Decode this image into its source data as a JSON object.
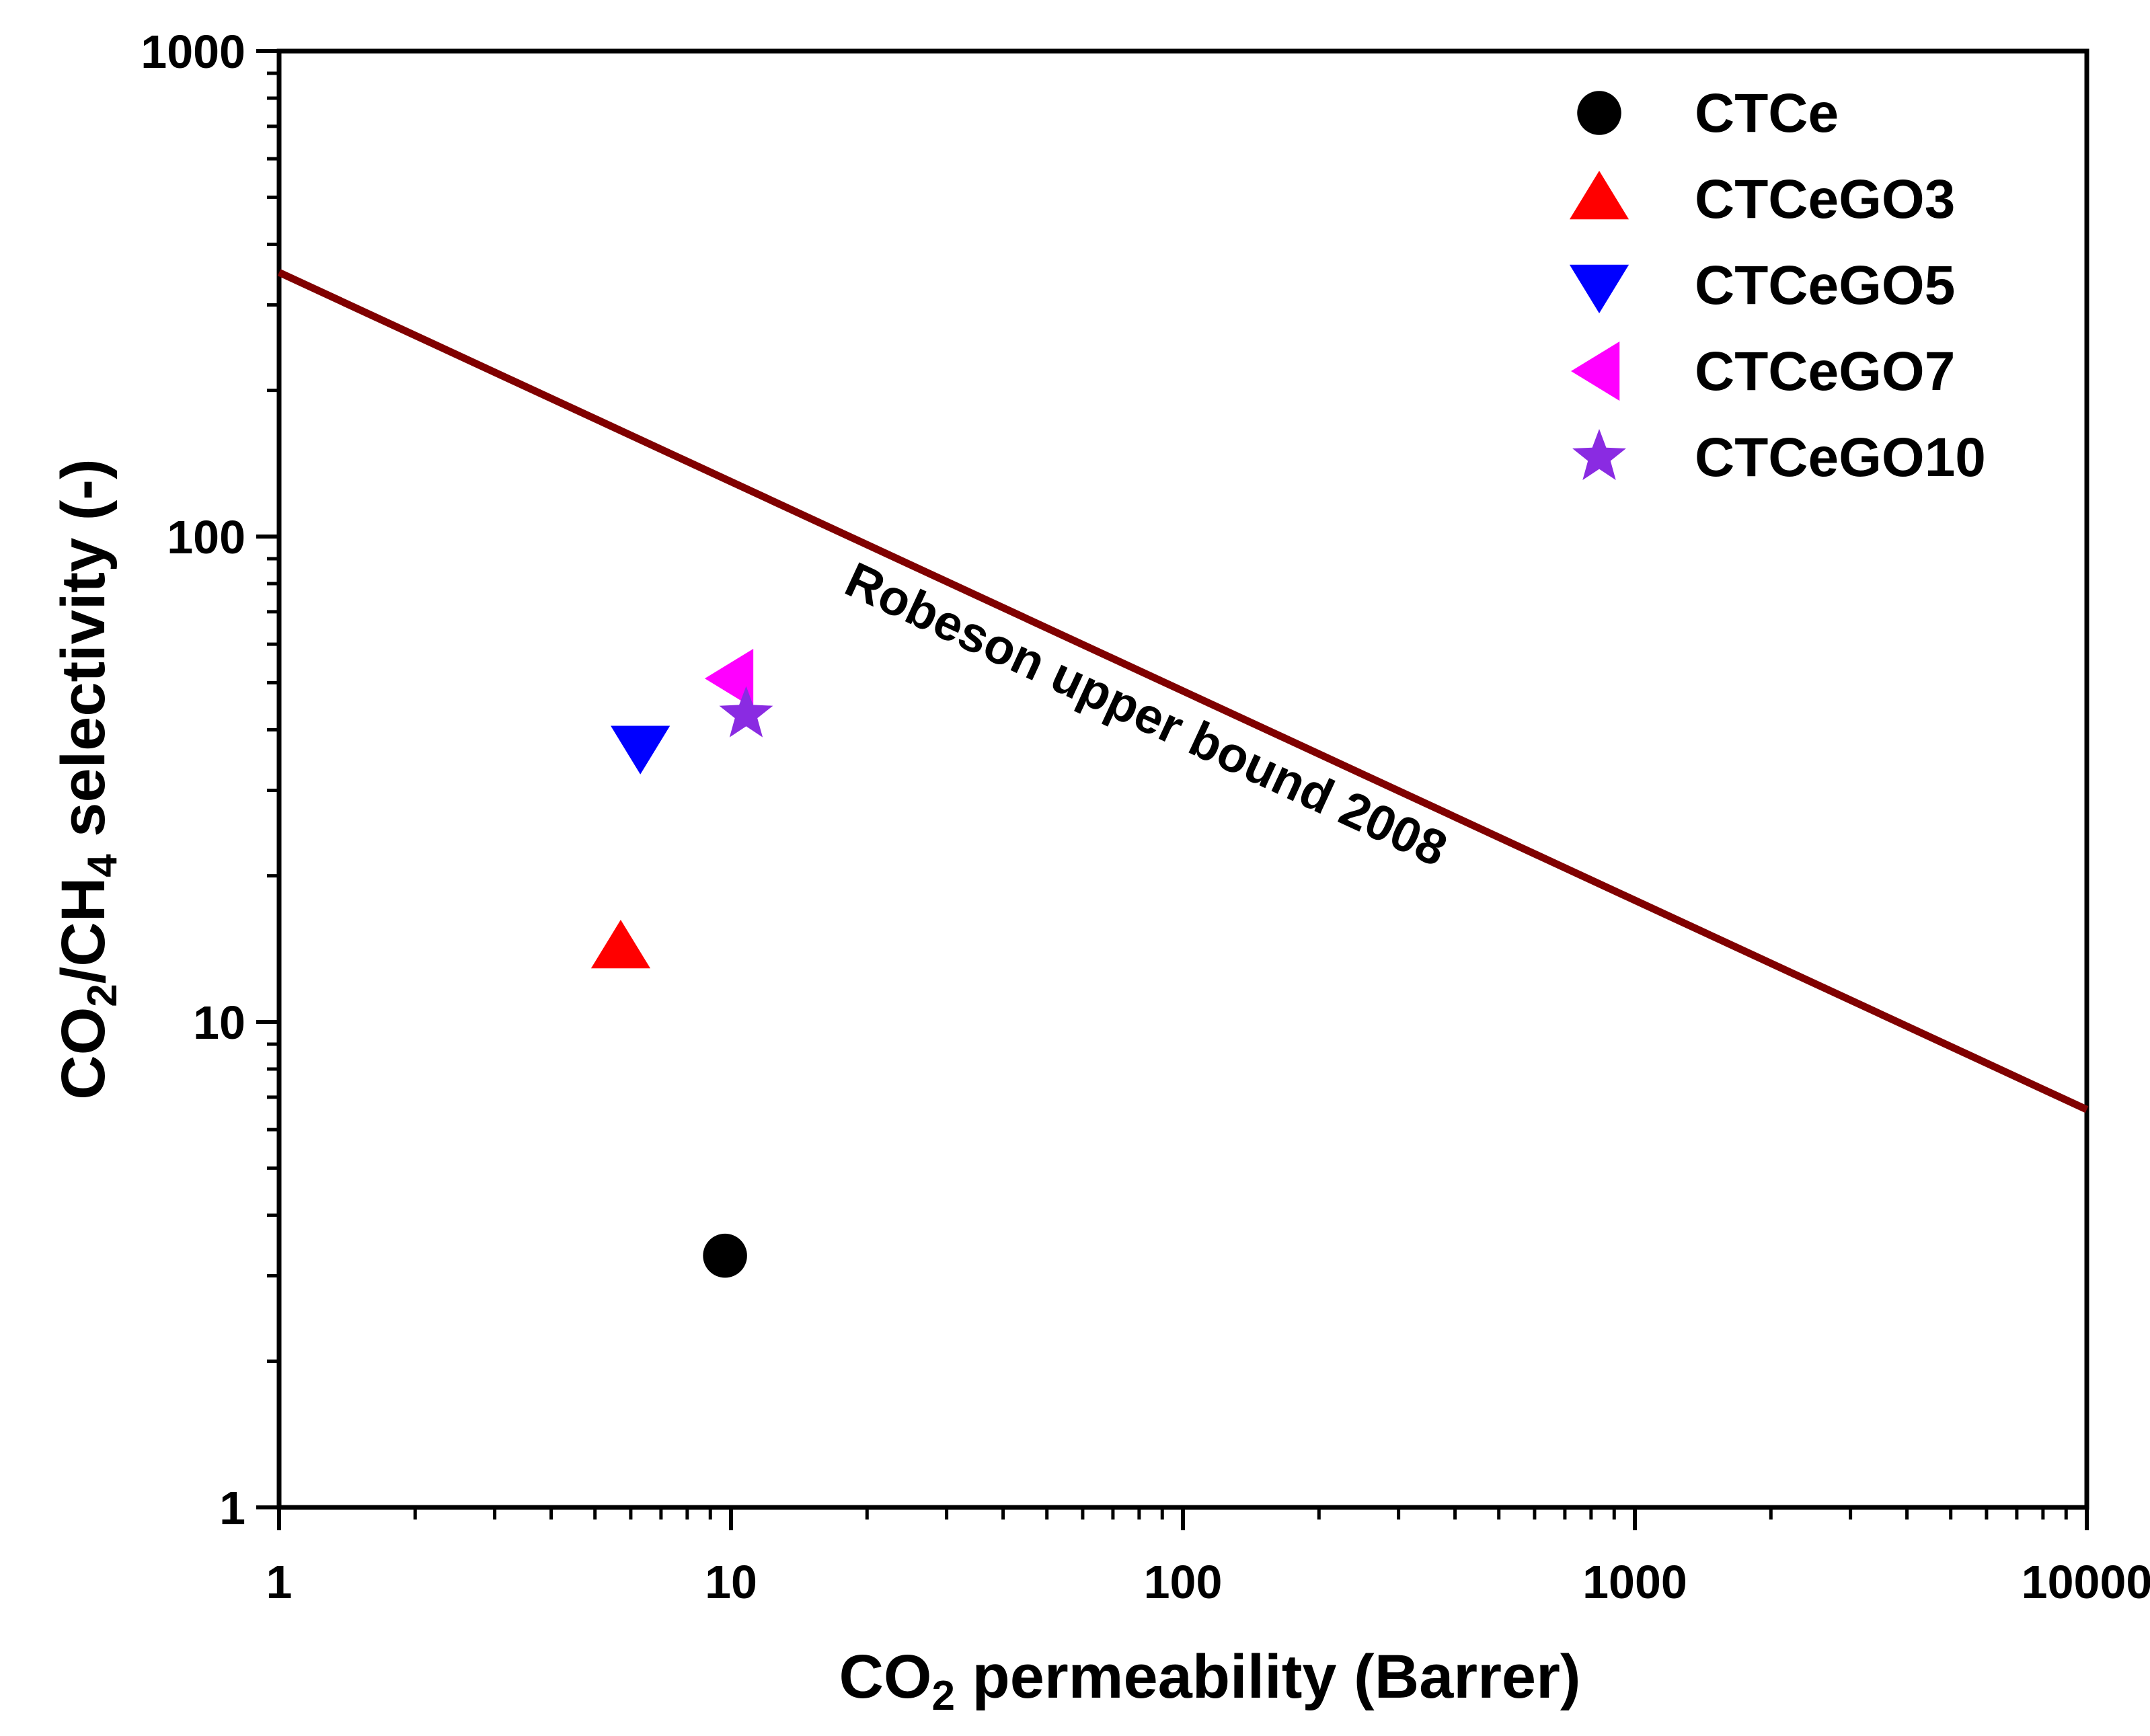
{
  "chart_data": {
    "type": "scatter",
    "title": "",
    "xlabel": {
      "main": "CO",
      "sub": "2",
      "rest": " permeability (Barrer)"
    },
    "ylabel": {
      "p1": "CO",
      "sub1": "2",
      "p2": "/CH",
      "sub2": "4",
      "p3": " selectivity (-)"
    },
    "xscale": "log",
    "yscale": "log",
    "xlim": [
      1,
      10000
    ],
    "ylim": [
      1,
      1000
    ],
    "x_ticks": [
      1,
      10,
      100,
      1000,
      10000
    ],
    "x_tick_labels": [
      "1",
      "10",
      "100",
      "1000",
      "10000"
    ],
    "y_ticks": [
      1,
      10,
      100,
      1000
    ],
    "y_tick_labels": [
      "1",
      "10",
      "100",
      "1000"
    ],
    "grid": false,
    "legend_position": "top-right",
    "series": [
      {
        "name": "CTCe",
        "marker": "circle",
        "color": "#000000",
        "x": 9.7,
        "y": 3.3
      },
      {
        "name": "CTCeGO3",
        "marker": "triangle-up",
        "color": "#ff0000",
        "x": 5.7,
        "y": 14.2
      },
      {
        "name": "CTCeGO5",
        "marker": "triangle-down",
        "color": "#0000ff",
        "x": 6.3,
        "y": 37
      },
      {
        "name": "CTCeGO7",
        "marker": "triangle-left",
        "color": "#ff00ff",
        "x": 10.1,
        "y": 51
      },
      {
        "name": "CTCeGO10",
        "marker": "star",
        "color": "#8a2be2",
        "x": 10.8,
        "y": 43
      }
    ],
    "upper_bound": {
      "name": "Robeson upper bound 2008",
      "color": "#800000",
      "points": [
        {
          "x": 1,
          "y": 350
        },
        {
          "x": 10000,
          "y": 6.6
        }
      ]
    },
    "annotations": [
      {
        "text": "Robeson upper bound 2008",
        "x": 80,
        "y": 40
      }
    ]
  }
}
